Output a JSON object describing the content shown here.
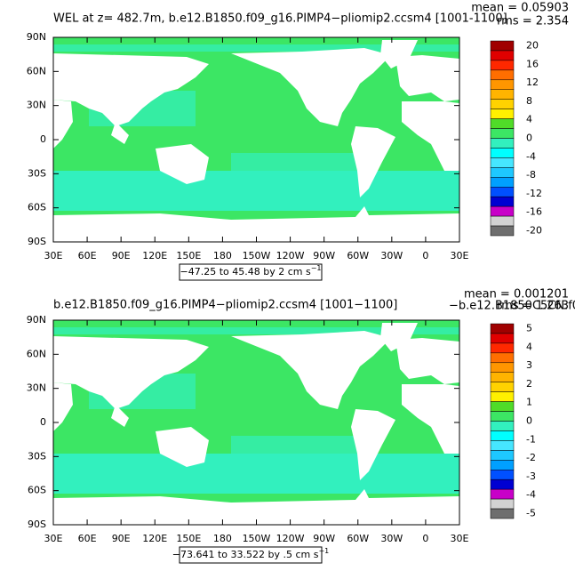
{
  "panels": [
    {
      "title": "WEL at z= 482.7m, b.e12.B1850.f09_g16.PIMP4−pliomip2.ccsm4 [1001-1100]",
      "mean": "mean = 0.05903",
      "rms": "rms = 2.354",
      "y_labels": [
        "90N",
        "60N",
        "30N",
        "0",
        "30S",
        "60S",
        "90S"
      ],
      "x_labels": [
        "30E",
        "60E",
        "90E",
        "120E",
        "150E",
        "180",
        "150W",
        "120W",
        "90W",
        "60W",
        "30W",
        "0",
        "30E"
      ],
      "range": "−47.25 to 45.48 by 2 cm s",
      "range_exp": "−1",
      "colorbar": {
        "labels": [
          20,
          16,
          12,
          8,
          4,
          0,
          -4,
          -8,
          -12,
          -16,
          -20
        ],
        "colors": [
          "#a00000",
          "#e00000",
          "#ff2800",
          "#ff6e00",
          "#ff9600",
          "#ffb400",
          "#ffd200",
          "#fff000",
          "#50dc28",
          "#3ce664",
          "#32f0be",
          "#00ffff",
          "#46e6ff",
          "#1ec8ff",
          "#00a0ff",
          "#0050ff",
          "#0000d2",
          "#c800c8",
          "#d2d2d2",
          "#6e6e6e"
        ]
      }
    },
    {
      "title": "b.e12.B1850.f09_g16.PIMP4−pliomip2.ccsm4 [1001−1100]",
      "overlay": "−b.e12.B1850C5CN.f0",
      "mean": "mean = 0.001201",
      "rms": "rms = 1.263",
      "y_labels": [
        "90N",
        "60N",
        "30N",
        "0",
        "30S",
        "60S",
        "90S"
      ],
      "x_labels": [
        "30E",
        "60E",
        "90E",
        "120E",
        "150E",
        "180",
        "150W",
        "120W",
        "90W",
        "60W",
        "30W",
        "0",
        "30E"
      ],
      "range": "−73.641 to 33.522 by .5 cm s",
      "range_exp": "−1",
      "colorbar": {
        "labels": [
          5,
          4,
          3,
          2,
          1,
          0,
          -1,
          -2,
          -3,
          -4,
          -5
        ],
        "colors": [
          "#a00000",
          "#e00000",
          "#ff2800",
          "#ff6e00",
          "#ff9600",
          "#ffb400",
          "#ffd200",
          "#fff000",
          "#50dc28",
          "#3ce664",
          "#32f0be",
          "#00ffff",
          "#46e6ff",
          "#1ec8ff",
          "#00a0ff",
          "#0050ff",
          "#0000d2",
          "#c800c8",
          "#d2d2d2",
          "#6e6e6e"
        ]
      }
    }
  ]
}
